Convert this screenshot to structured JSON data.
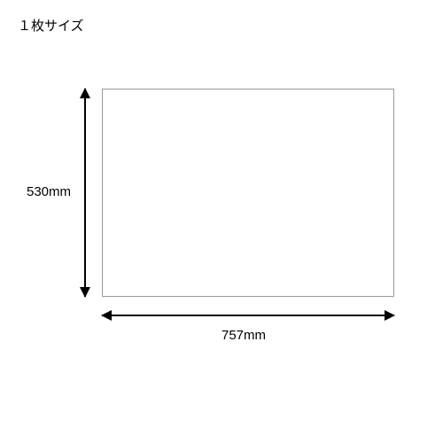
{
  "title": "１枚サイズ",
  "diagram": {
    "type": "dimension-diagram",
    "rect": {
      "border_color": "#999999",
      "fill_color": "#ffffff",
      "border_width": 1
    },
    "height_dim": {
      "label": "530mm",
      "arrow_color": "#000000",
      "arrow_width": 2,
      "label_fontsize": 15
    },
    "width_dim": {
      "label": "757mm",
      "arrow_color": "#000000",
      "arrow_width": 2,
      "label_fontsize": 15
    },
    "background_color": "#ffffff",
    "title_fontsize": 15,
    "title_color": "#000000"
  }
}
